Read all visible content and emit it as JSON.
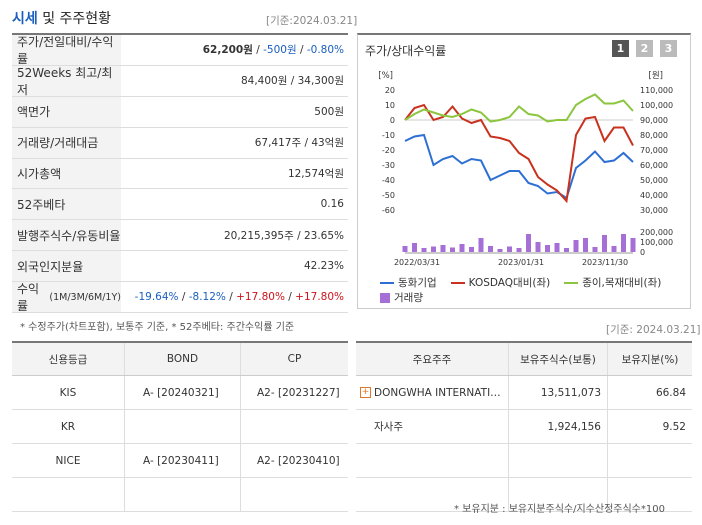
{
  "header": {
    "title_main": "시세",
    "title_rest": " 및 주주현황",
    "base_date": "[기준:2024.03.21]"
  },
  "quote": [
    {
      "label": "주가/전일대비/수익률",
      "price": "62,200원",
      "sep1": " / ",
      "change": "-500원",
      "sep2": " / ",
      "rate": "-0.80%"
    },
    {
      "label": "52Weeks 최고/최저",
      "value": "84,400원 / 34,300원"
    },
    {
      "label": "액면가",
      "value": "500원"
    },
    {
      "label": "거래량/거래대금",
      "value": "67,417주 / 43억원"
    },
    {
      "label": "시가총액",
      "value": "12,574억원"
    },
    {
      "label": "52주베타",
      "value": "0.16"
    },
    {
      "label": "발행주식수/유동비율",
      "value": "20,215,395주 / 23.65%"
    },
    {
      "label": "외국인지분율",
      "value": "42.23%"
    },
    {
      "label": "수익률",
      "label_sub": "(1M/3M/6M/1Y)",
      "r1": "-19.64%",
      "r2": "-8.12%",
      "r3": "+17.80%",
      "r4": "+17.80%",
      "sep": " / "
    }
  ],
  "footnote": "* 수정주가(차트포함), 보통주 기준, * 52주베타: 주간수익률 기준",
  "chart_panel": {
    "title": "주가/상대수익률",
    "period_buttons": [
      "1",
      "2",
      "3"
    ],
    "left_unit": "[%]",
    "right_unit": "[원]",
    "legend": [
      {
        "name": "동화기업",
        "color": "#2e6fd4"
      },
      {
        "name": "KOSDAQ대비(좌)",
        "color": "#c8321e"
      },
      {
        "name": "종이,목재대비(좌)",
        "color": "#8cc63f"
      },
      {
        "name": "거래량",
        "color": "#a56fd6"
      }
    ],
    "base_date": "[기준: 2024.03.21]"
  },
  "chart_data": {
    "type": "line",
    "title": "주가/상대수익률",
    "x_ticks": [
      "2022/03/31",
      "2023/01/31",
      "2023/11/30"
    ],
    "left_axis": {
      "label": "[%]",
      "ylim": [
        -60,
        20
      ],
      "ticks": [
        20,
        10,
        0,
        -10,
        -20,
        -30,
        -40,
        -50,
        -60
      ]
    },
    "right_axis": {
      "label": "[원]",
      "ylim": [
        30000,
        110000
      ],
      "ticks": [
        "110,000",
        "100,000",
        "90,000",
        "80,000",
        "70,000",
        "60,000",
        "50,000",
        "40,000",
        "30,000"
      ]
    },
    "volume_axis": {
      "ticks": [
        "200,000",
        "100,000",
        "0"
      ],
      "ylim": [
        0,
        200000
      ]
    },
    "series": [
      {
        "name": "동화기업",
        "axis": "right",
        "color": "#2e6fd4",
        "values": [
          76000,
          79000,
          80000,
          60000,
          64000,
          66000,
          61000,
          64000,
          63000,
          50000,
          53000,
          56000,
          56000,
          48000,
          46000,
          41000,
          42000,
          38000,
          58000,
          63000,
          69000,
          62000,
          63000,
          68000,
          62000
        ]
      },
      {
        "name": "KOSDAQ대비(좌)",
        "axis": "left",
        "color": "#c8321e",
        "values": [
          0,
          8,
          10,
          0,
          2,
          9,
          1,
          -2,
          0,
          -11,
          -12,
          -14,
          -22,
          -26,
          -38,
          -43,
          -47,
          -54,
          -10,
          1,
          2,
          -14,
          -5,
          -5,
          -17
        ]
      },
      {
        "name": "종이,목재대비(좌)",
        "axis": "left",
        "color": "#8cc63f",
        "values": [
          0,
          4,
          7,
          5,
          3,
          2,
          4,
          7,
          5,
          -1,
          0,
          2,
          9,
          4,
          3,
          -1,
          0,
          0,
          10,
          14,
          17,
          11,
          11,
          13,
          6
        ]
      },
      {
        "name": "거래량",
        "axis": "volume",
        "color": "#a56fd6",
        "values": [
          60000,
          90000,
          40000,
          55000,
          70000,
          45000,
          80000,
          50000,
          140000,
          60000,
          30000,
          55000,
          40000,
          180000,
          100000,
          70000,
          90000,
          40000,
          120000,
          140000,
          50000,
          170000,
          60000,
          180000,
          140000
        ]
      }
    ]
  },
  "credit": {
    "headers": [
      "신용등급",
      "BOND",
      "CP"
    ],
    "rows": [
      {
        "agency": "KIS",
        "bond": "A-  [20240321]",
        "cp": "A2-  [20231227]"
      },
      {
        "agency": "KR",
        "bond": "",
        "cp": ""
      },
      {
        "agency": "NICE",
        "bond": "A-  [20230411]",
        "cp": "A2-  [20230410]"
      },
      {
        "agency": "",
        "bond": "",
        "cp": ""
      }
    ]
  },
  "holders": {
    "headers": [
      "주요주주",
      "보유주식수(보통)",
      "보유지분(%)"
    ],
    "rows": [
      {
        "name": "DONGWHA INTERNATI…",
        "shares": "13,511,073",
        "pct": "66.84",
        "expand": true
      },
      {
        "name": "자사주",
        "shares": "1,924,156",
        "pct": "9.52",
        "expand": false
      },
      {
        "name": "",
        "shares": "",
        "pct": "",
        "expand": false
      },
      {
        "name": "",
        "shares": "",
        "pct": "",
        "expand": false
      }
    ],
    "footnote": "* 보유지분 : 보유지분주식수/지수산정주식수*100"
  }
}
